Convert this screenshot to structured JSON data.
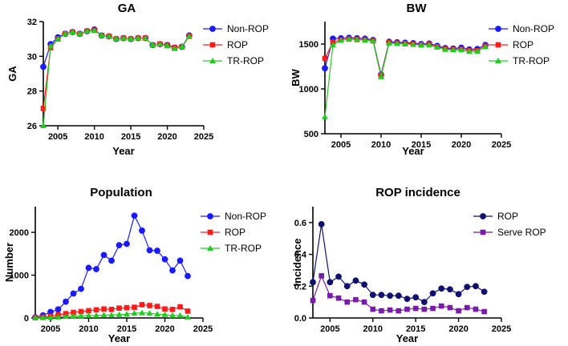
{
  "chart_data": [
    {
      "id": "ga",
      "type": "line",
      "title": "GA",
      "xlabel": "Year",
      "ylabel": "GA",
      "xlim": [
        2003,
        2025
      ],
      "ylim": [
        26,
        32
      ],
      "xticks": [
        2005,
        2010,
        2015,
        2020,
        2025
      ],
      "yticks": [
        26,
        28,
        30,
        32
      ],
      "x": [
        2003,
        2004,
        2005,
        2006,
        2007,
        2008,
        2009,
        2010,
        2011,
        2012,
        2013,
        2014,
        2015,
        2016,
        2017,
        2018,
        2019,
        2020,
        2021,
        2022,
        2023
      ],
      "series": [
        {
          "name": "Non-ROP",
          "color": "#1a1aff",
          "marker": "circle",
          "values": [
            29.4,
            30.7,
            31.1,
            31.3,
            31.4,
            31.3,
            31.45,
            31.55,
            31.2,
            31.15,
            31.0,
            31.05,
            31.0,
            31.05,
            31.05,
            30.65,
            30.7,
            30.65,
            30.5,
            30.55,
            31.2
          ]
        },
        {
          "name": "ROP",
          "color": "#ff1a1a",
          "marker": "square",
          "values": [
            27.0,
            30.5,
            31.0,
            31.3,
            31.4,
            31.3,
            31.45,
            31.5,
            31.2,
            31.15,
            31.0,
            31.05,
            31.0,
            31.05,
            31.05,
            30.65,
            30.7,
            30.65,
            30.5,
            30.55,
            31.15
          ]
        },
        {
          "name": "TR-ROP",
          "color": "#22cc22",
          "marker": "triangle",
          "values": [
            26.0,
            30.6,
            31.0,
            31.3,
            31.4,
            31.3,
            31.45,
            31.5,
            31.2,
            31.15,
            31.0,
            31.05,
            31.0,
            31.05,
            31.05,
            30.65,
            30.7,
            30.6,
            30.45,
            30.55,
            31.15
          ]
        }
      ]
    },
    {
      "id": "bw",
      "type": "line",
      "title": "BW",
      "xlabel": "Year",
      "ylabel": "BW",
      "xlim": [
        2003,
        2025
      ],
      "ylim": [
        500,
        1750
      ],
      "xticks": [
        2005,
        2010,
        2015,
        2020,
        2025
      ],
      "yticks": [
        500,
        1000,
        1500
      ],
      "x": [
        2003,
        2004,
        2005,
        2006,
        2007,
        2008,
        2009,
        2010,
        2011,
        2012,
        2013,
        2014,
        2015,
        2016,
        2017,
        2018,
        2019,
        2020,
        2021,
        2022,
        2023
      ],
      "series": [
        {
          "name": "Non-ROP",
          "color": "#1a1aff",
          "marker": "circle",
          "values": [
            1230,
            1560,
            1565,
            1570,
            1565,
            1560,
            1545,
            1160,
            1525,
            1520,
            1515,
            1510,
            1500,
            1505,
            1480,
            1455,
            1450,
            1460,
            1440,
            1445,
            1490
          ]
        },
        {
          "name": "ROP",
          "color": "#ff1a1a",
          "marker": "square",
          "values": [
            1340,
            1520,
            1545,
            1555,
            1550,
            1545,
            1535,
            1150,
            1515,
            1510,
            1505,
            1500,
            1490,
            1495,
            1470,
            1445,
            1440,
            1440,
            1425,
            1425,
            1475
          ]
        },
        {
          "name": "TR-ROP",
          "color": "#22cc22",
          "marker": "triangle",
          "values": [
            690,
            1490,
            1540,
            1555,
            1550,
            1545,
            1535,
            1135,
            1510,
            1505,
            1500,
            1495,
            1490,
            1490,
            1465,
            1440,
            1435,
            1435,
            1420,
            1420,
            1470
          ]
        }
      ]
    },
    {
      "id": "population",
      "type": "line",
      "title": "Population",
      "xlabel": "Year",
      "ylabel": "Number",
      "xlim": [
        2003,
        2025
      ],
      "ylim": [
        0,
        2600
      ],
      "xticks": [
        2005,
        2010,
        2015,
        2020,
        2025
      ],
      "yticks": [
        0,
        1000,
        2000
      ],
      "x": [
        2003,
        2004,
        2005,
        2006,
        2007,
        2008,
        2009,
        2010,
        2011,
        2012,
        2013,
        2014,
        2015,
        2016,
        2017,
        2018,
        2019,
        2020,
        2021,
        2022,
        2023
      ],
      "series": [
        {
          "name": "Non-ROP",
          "color": "#1a1aff",
          "marker": "circle",
          "values": [
            15,
            60,
            140,
            200,
            380,
            570,
            680,
            1170,
            1140,
            1470,
            1340,
            1700,
            1730,
            2390,
            2040,
            1580,
            1570,
            1370,
            1110,
            1340,
            980
          ]
        },
        {
          "name": "ROP",
          "color": "#ff1a1a",
          "marker": "square",
          "values": [
            5,
            20,
            40,
            70,
            100,
            130,
            150,
            170,
            190,
            210,
            200,
            230,
            240,
            250,
            310,
            290,
            270,
            210,
            200,
            260,
            160
          ]
        },
        {
          "name": "TR-ROP",
          "color": "#22cc22",
          "marker": "triangle",
          "values": [
            2,
            5,
            10,
            20,
            35,
            45,
            50,
            60,
            60,
            70,
            70,
            80,
            90,
            110,
            120,
            110,
            90,
            80,
            60,
            60,
            20
          ]
        }
      ]
    },
    {
      "id": "incidence",
      "type": "line",
      "title": "ROP incidence",
      "xlabel": "Year",
      "ylabel": "Incidence",
      "xlim": [
        2003,
        2025
      ],
      "ylim": [
        0,
        0.7
      ],
      "xticks": [
        2005,
        2010,
        2015,
        2020,
        2025
      ],
      "yticks": [
        0.0,
        0.2,
        0.4,
        0.6
      ],
      "yticklabels": [
        "0.0",
        "0.2",
        "0.4",
        "0.6"
      ],
      "x": [
        2003,
        2004,
        2005,
        2006,
        2007,
        2008,
        2009,
        2010,
        2011,
        2012,
        2013,
        2014,
        2015,
        2016,
        2017,
        2018,
        2019,
        2020,
        2021,
        2022,
        2023
      ],
      "series": [
        {
          "name": "ROP",
          "color": "#10106e",
          "marker": "circle",
          "values": [
            0.225,
            0.59,
            0.225,
            0.26,
            0.2,
            0.235,
            0.21,
            0.145,
            0.145,
            0.14,
            0.14,
            0.12,
            0.13,
            0.1,
            0.155,
            0.185,
            0.18,
            0.15,
            0.195,
            0.2,
            0.165
          ]
        },
        {
          "name": "Serve ROP",
          "color": "#7a1aa8",
          "marker": "square",
          "values": [
            0.11,
            0.265,
            0.14,
            0.125,
            0.1,
            0.115,
            0.1,
            0.055,
            0.045,
            0.05,
            0.045,
            0.055,
            0.06,
            0.055,
            0.06,
            0.075,
            0.065,
            0.045,
            0.065,
            0.055,
            0.04
          ]
        }
      ]
    }
  ]
}
